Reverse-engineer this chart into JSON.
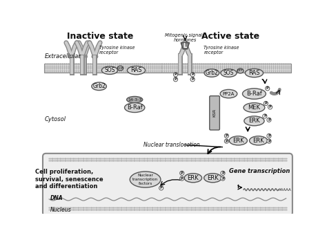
{
  "title_inactive": "Inactive state",
  "title_active": "Active state",
  "label_extracellular": "Extracellular",
  "label_cytosol": "Cytosol",
  "label_nucleus": "Nucleus",
  "label_dna": "DNA",
  "label_mitogenic": "Mitogenic signals\nhormones",
  "label_tyrosine1": "Tyrosine kinase\nreceptor",
  "label_tyrosine2": "Tyrosine kinase\nreceptor",
  "label_nuclear_translocation": "Nuclear translocation",
  "label_gene_transcription": "Gene transcription",
  "label_cell_prolif": "Cell proliferation,\nsurvival, senescence\nand differentiation",
  "label_nuclear_tf": "Nuclear\ntranscription\nfactors",
  "bg_color": "#ffffff",
  "protein_fill": "#d8d8d8",
  "protein_edge": "#555555",
  "text_color": "#111111",
  "membrane_fill": "#e0e0e0",
  "nucleus_fill": "#eeeeee",
  "scaffold_fill": "#bbbbbb"
}
